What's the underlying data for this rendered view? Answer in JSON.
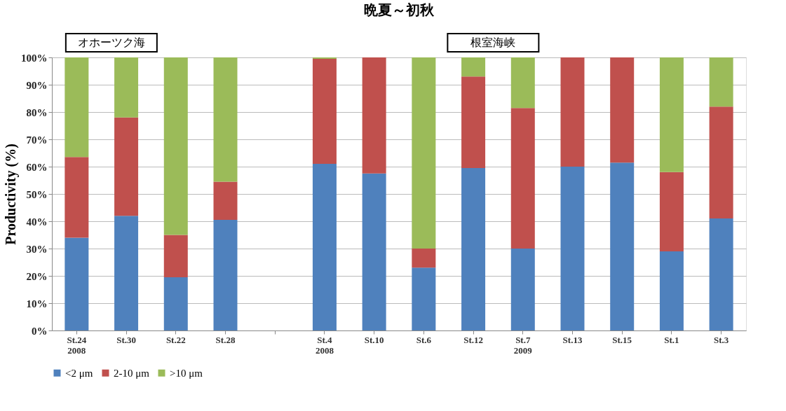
{
  "chart_data": {
    "type": "bar",
    "stacked": true,
    "title": "晩夏～初秋",
    "ylabel": "Productivity (%)",
    "categories": [
      "St.24\n2008",
      "St.30",
      "St.22",
      "St.28",
      null,
      "St.4\n2008",
      "St.10",
      "St.6",
      "St.12",
      "St.7\n2009",
      "St.13",
      "St.15",
      "St.1",
      "St.3"
    ],
    "series": [
      {
        "name": "<2 μm",
        "color": "#4f81bd",
        "values": [
          34,
          42,
          19.5,
          40.5,
          null,
          61,
          57.5,
          23,
          59.5,
          30,
          60,
          61.5,
          29,
          41
        ]
      },
      {
        "name": "2-10 μm",
        "color": "#c0504d",
        "values": [
          29.5,
          36,
          15.5,
          14,
          null,
          38.5,
          42.5,
          7,
          33.5,
          51.5,
          40,
          38.5,
          29,
          41
        ]
      },
      {
        "name": ">10 μm",
        "color": "#9bbb59",
        "values": [
          36.5,
          22,
          65,
          45.5,
          null,
          0.5,
          0,
          70,
          7,
          18.5,
          0,
          0,
          42,
          18
        ]
      }
    ],
    "ylim": [
      0,
      100
    ],
    "yticks": [
      {
        "value": 0,
        "label": "0%"
      },
      {
        "value": 10,
        "label": "10%"
      },
      {
        "value": 20,
        "label": "20%"
      },
      {
        "value": 30,
        "label": "30%"
      },
      {
        "value": 40,
        "label": "40%"
      },
      {
        "value": 50,
        "label": "50%"
      },
      {
        "value": 60,
        "label": "60%"
      },
      {
        "value": 70,
        "label": "70%"
      },
      {
        "value": 80,
        "label": "80%"
      },
      {
        "value": 90,
        "label": "90%"
      },
      {
        "value": 100,
        "label": "100%"
      }
    ],
    "grid": "y",
    "legend": "bottom",
    "annotations": [
      "オホーツク海",
      "根室海峡"
    ]
  }
}
